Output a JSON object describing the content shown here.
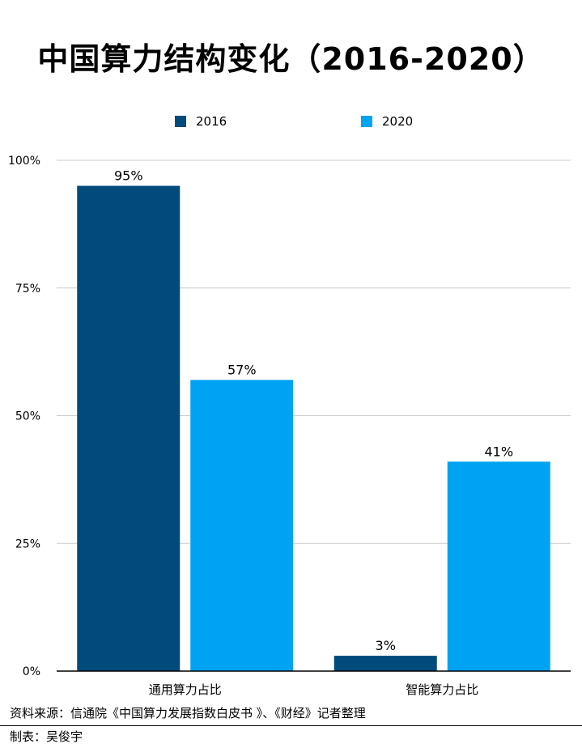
{
  "title": "中国算力结构变化（2016-2020）",
  "footer": {
    "source": "资料来源：信通院《中国算力发展指数白皮书 》、《财经》记者整理",
    "credit": "制表：吴俊宇"
  },
  "chart_data": {
    "type": "bar",
    "title": "中国算力结构变化（2016-2020）",
    "categories": [
      "通用算力占比",
      "智能算力占比"
    ],
    "series": [
      {
        "name": "2016",
        "values": [
          95,
          3
        ],
        "labels": [
          "95%",
          "3%"
        ],
        "color": "#004a7c"
      },
      {
        "name": "2020",
        "values": [
          57,
          41
        ],
        "labels": [
          "57%",
          "41%"
        ],
        "color": "#00a2f2"
      }
    ],
    "y_ticks": [
      0,
      25,
      50,
      75,
      100
    ],
    "y_tick_labels": [
      "0%",
      "25%",
      "50%",
      "75%",
      "100%"
    ],
    "ylim": [
      0,
      100
    ],
    "grid": true,
    "legend_position": "top"
  }
}
